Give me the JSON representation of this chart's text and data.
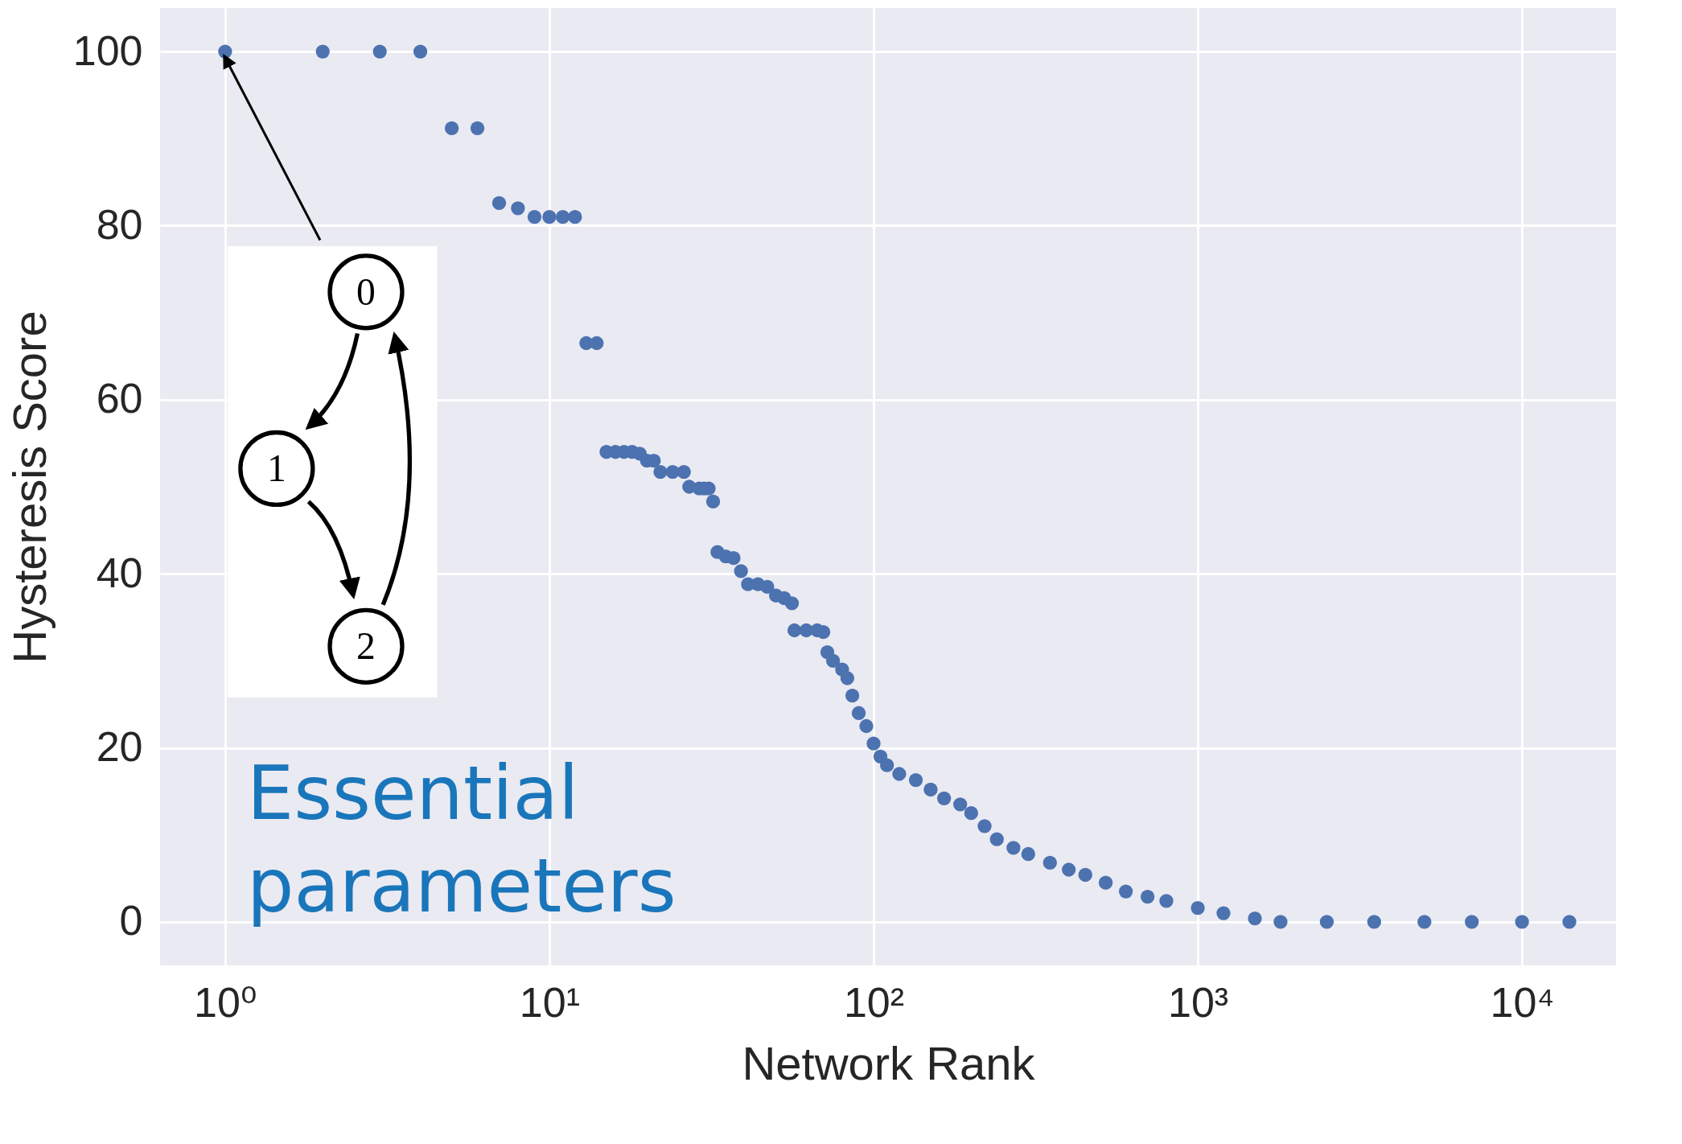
{
  "chart_data": {
    "type": "scatter",
    "xlabel": "Network Rank",
    "ylabel": "Hysteresis Score",
    "log": "x",
    "grid": true,
    "marker": "circle",
    "legend": false,
    "xlim": [
      0.63,
      19500
    ],
    "ylim": [
      -5,
      105
    ],
    "xticks": [
      {
        "value": 1,
        "label": "10⁰"
      },
      {
        "value": 10,
        "label": "10¹"
      },
      {
        "value": 100,
        "label": "10²"
      },
      {
        "value": 1000,
        "label": "10³"
      },
      {
        "value": 10000,
        "label": "10⁴"
      }
    ],
    "yticks": [
      0,
      20,
      40,
      60,
      80,
      100
    ],
    "annotations": [
      "Essential parameters",
      {
        "text": "0",
        "x": 1,
        "y": 100
      },
      "1",
      "2"
    ],
    "series": [
      {
        "color": "#4c72b0",
        "x": [
          1,
          2,
          3,
          4,
          5,
          6,
          7,
          8,
          9,
          10,
          11,
          12,
          13,
          14,
          15,
          16,
          17,
          18,
          19,
          20,
          21,
          22,
          24,
          26,
          27,
          29,
          30,
          31,
          32,
          33,
          35,
          37,
          39,
          41,
          44,
          47,
          50,
          53,
          56,
          57,
          62,
          67,
          70,
          72,
          75,
          80,
          83,
          86,
          90,
          95,
          100,
          105,
          110,
          120,
          135,
          150,
          165,
          185,
          200,
          220,
          240,
          270,
          300,
          350,
          400,
          450,
          520,
          600,
          700,
          800,
          1000,
          1200,
          1500,
          1800,
          2500,
          3500,
          5000,
          7000,
          10000,
          14000
        ],
        "values": [
          100,
          100,
          100,
          100,
          91.2,
          91.2,
          82.6,
          82,
          81,
          81,
          81,
          81,
          66.5,
          66.5,
          54,
          54,
          54,
          54,
          53.8,
          53,
          53,
          51.7,
          51.7,
          51.7,
          50,
          49.8,
          49.8,
          49.8,
          48.3,
          42.5,
          42,
          41.8,
          40.3,
          38.8,
          38.8,
          38.5,
          37.5,
          37.2,
          36.6,
          33.5,
          33.5,
          33.5,
          33.3,
          31,
          30,
          29,
          28,
          26,
          24,
          22.5,
          20.5,
          19,
          18,
          17,
          16.3,
          15.2,
          14.2,
          13.5,
          12.5,
          11,
          9.5,
          8.5,
          7.8,
          6.8,
          6,
          5.4,
          4.5,
          3.5,
          2.9,
          2.4,
          1.6,
          1,
          0.4,
          0,
          0,
          0,
          0,
          0,
          0,
          0
        ]
      }
    ]
  }
}
